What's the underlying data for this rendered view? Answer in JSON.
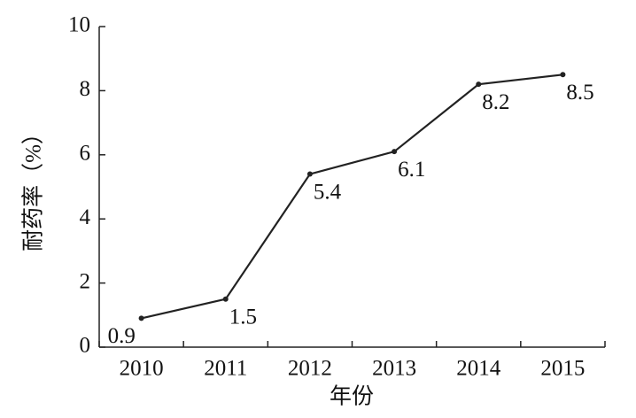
{
  "chart_data": {
    "type": "line",
    "x_label": "年份",
    "y_label": "耐药率（%）",
    "categories": [
      "2010",
      "2011",
      "2012",
      "2013",
      "2014",
      "2015"
    ],
    "values": [
      0.9,
      1.5,
      5.4,
      6.1,
      8.2,
      8.5
    ],
    "color": "#222222",
    "ylim": [
      0,
      10
    ],
    "yticks": [
      0,
      2,
      4,
      6,
      8,
      10
    ],
    "grid": false
  }
}
